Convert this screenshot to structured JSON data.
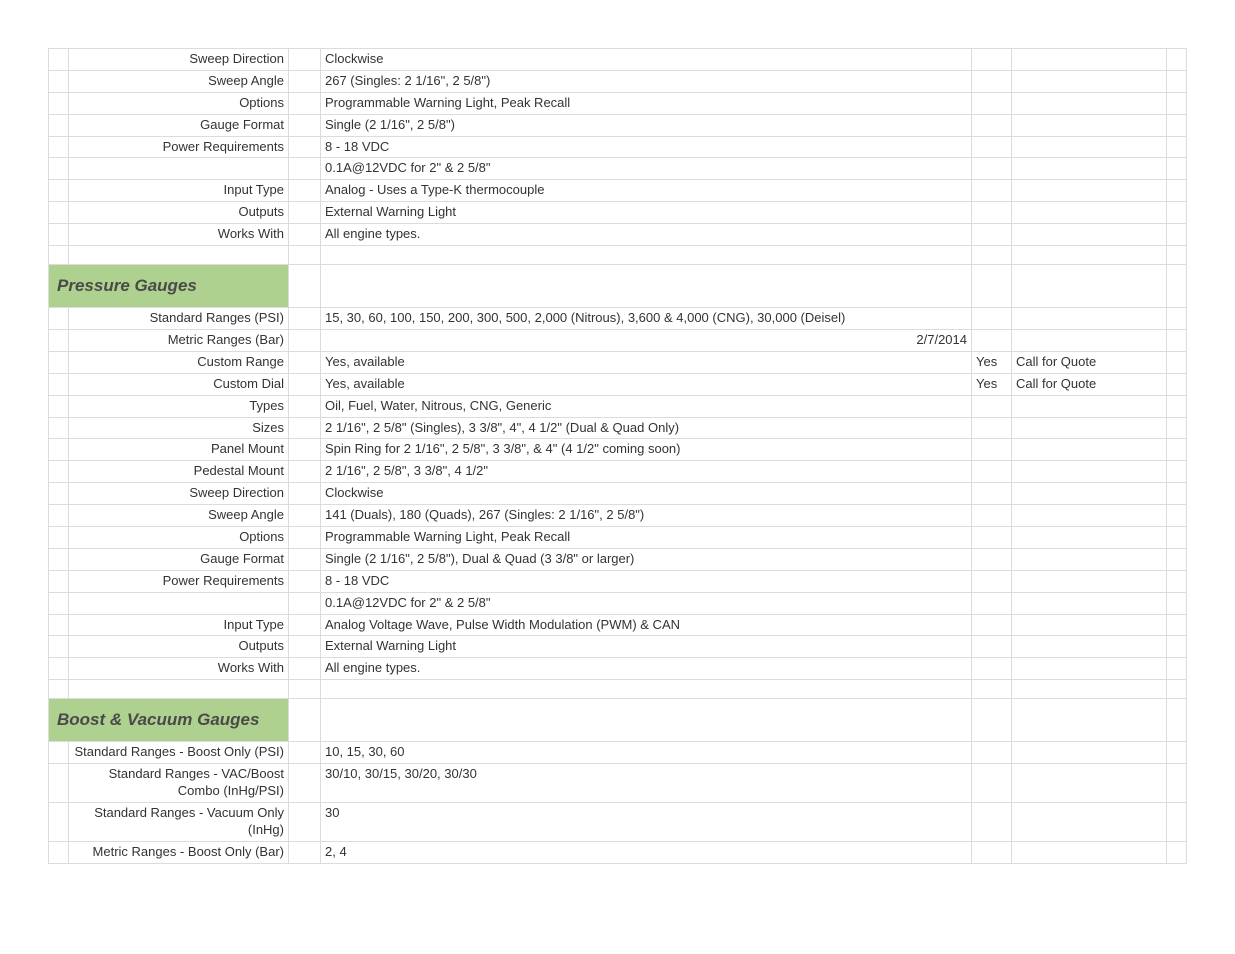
{
  "colors": {
    "section_bg": "#aed18f",
    "border": "#dcdcdc",
    "text": "#333333",
    "section_text": "#4a4a4a",
    "background": "#ffffff"
  },
  "rows": [
    {
      "type": "kv",
      "label": "Sweep Direction",
      "value": "Clockwise"
    },
    {
      "type": "kv",
      "label": "Sweep Angle",
      "value": "267 (Singles: 2 1/16\", 2 5/8\")"
    },
    {
      "type": "kv",
      "label": "Options",
      "value": "Programmable Warning Light, Peak Recall"
    },
    {
      "type": "kv",
      "label": "Gauge Format",
      "value": "Single (2 1/16\", 2 5/8\")"
    },
    {
      "type": "kv",
      "label": "Power Requirements",
      "value": "8 - 18 VDC"
    },
    {
      "type": "kv",
      "label": "",
      "value": "0.1A@12VDC for 2\" & 2 5/8\""
    },
    {
      "type": "kv",
      "label": "Input Type",
      "value": "Analog - Uses a Type-K thermocouple"
    },
    {
      "type": "kv",
      "label": "Outputs",
      "value": "External Warning Light"
    },
    {
      "type": "kv",
      "label": "Works With",
      "value": "All engine types."
    },
    {
      "type": "blank"
    },
    {
      "type": "section",
      "title": "Pressure Gauges"
    },
    {
      "type": "kv",
      "label": "Standard Ranges (PSI)",
      "value": "15, 30, 60, 100, 150, 200, 300, 500, 2,000 (Nitrous), 3,600 & 4,000 (CNG), 30,000 (Deisel)"
    },
    {
      "type": "kv",
      "label": "Metric Ranges (Bar)",
      "value_align": "right",
      "value": "2/7/2014"
    },
    {
      "type": "kv",
      "label": "Custom Range",
      "value": "Yes, available",
      "col4": "Yes",
      "col5": "Call for Quote"
    },
    {
      "type": "kv",
      "label": "Custom Dial",
      "value": "Yes, available",
      "col4": "Yes",
      "col5": "Call for Quote"
    },
    {
      "type": "kv",
      "label": "Types",
      "value": "Oil, Fuel, Water, Nitrous, CNG, Generic"
    },
    {
      "type": "kv",
      "label": "Sizes",
      "value": "2 1/16\", 2 5/8\" (Singles), 3 3/8\", 4\", 4 1/2\" (Dual & Quad Only)"
    },
    {
      "type": "kv",
      "label": "Panel Mount",
      "value": "Spin Ring for 2 1/16\", 2 5/8\", 3 3/8\", & 4\" (4 1/2\" coming soon)"
    },
    {
      "type": "kv",
      "label": "Pedestal Mount",
      "value": "2 1/16\", 2 5/8\", 3 3/8\", 4 1/2\""
    },
    {
      "type": "kv",
      "label": "Sweep Direction",
      "value": "Clockwise"
    },
    {
      "type": "kv",
      "label": "Sweep Angle",
      "value": "141 (Duals), 180 (Quads), 267 (Singles: 2 1/16\", 2 5/8\")"
    },
    {
      "type": "kv",
      "label": "Options",
      "value": "Programmable Warning Light, Peak Recall"
    },
    {
      "type": "kv",
      "label": "Gauge Format",
      "value": "Single (2 1/16\", 2 5/8\"), Dual & Quad (3 3/8\" or larger)"
    },
    {
      "type": "kv",
      "label": "Power Requirements",
      "value": "8 - 18 VDC"
    },
    {
      "type": "kv",
      "label": "",
      "value": "0.1A@12VDC for 2\" & 2 5/8\""
    },
    {
      "type": "kv",
      "label": "Input Type",
      "value": "Analog Voltage Wave, Pulse Width Modulation (PWM) & CAN"
    },
    {
      "type": "kv",
      "label": "Outputs",
      "value": "External Warning Light"
    },
    {
      "type": "kv",
      "label": "Works With",
      "value": "All engine types."
    },
    {
      "type": "blank"
    },
    {
      "type": "section",
      "title": "Boost & Vacuum Gauges"
    },
    {
      "type": "kv",
      "label": "Standard Ranges - Boost Only (PSI)",
      "value": "10, 15, 30, 60"
    },
    {
      "type": "kv",
      "label": "Standard Ranges - VAC/Boost Combo (InHg/PSI)",
      "value": "30/10, 30/15, 30/20, 30/30"
    },
    {
      "type": "kv",
      "label": "Standard Ranges - Vacuum Only (InHg)",
      "value": "30"
    },
    {
      "type": "kv",
      "label": "Metric Ranges - Boost Only (Bar)",
      "value": "2, 4"
    }
  ]
}
